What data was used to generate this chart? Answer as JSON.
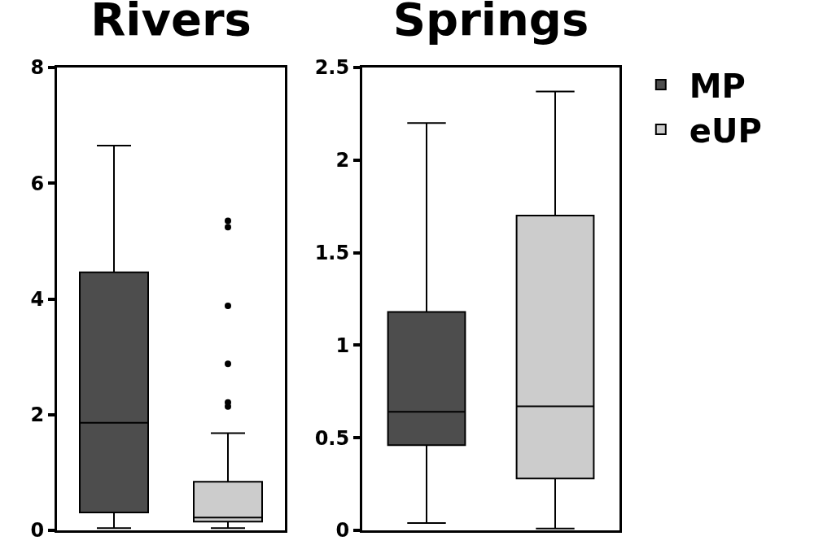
{
  "chart_data": [
    {
      "type": "box",
      "title": "Rivers",
      "categories": [
        null
      ],
      "ylim": [
        0,
        8
      ],
      "yticks": [
        0,
        2,
        4,
        6,
        8
      ],
      "grid": false,
      "legend": false,
      "series": [
        {
          "color": "#4d4d4d",
          "boxes": [
            {
              "low": 0.04,
              "q1": 0.31,
              "median": 1.86,
              "q3": 4.46,
              "high": 6.65
            }
          ]
        },
        {
          "color": "#cccccc",
          "boxes": [
            {
              "low": 0.04,
              "q1": 0.15,
              "median": 0.22,
              "q3": 0.84,
              "high": 1.68,
              "outliers": [
                2.14,
                2.21,
                2.88,
                3.88,
                5.24,
                5.35
              ]
            }
          ]
        }
      ]
    },
    {
      "type": "box",
      "title": "Springs",
      "categories": [
        null
      ],
      "ylim": [
        0,
        2.5
      ],
      "yticks": [
        0,
        0.5,
        1,
        1.5,
        2,
        2.5
      ],
      "grid": false,
      "legend": "right",
      "series": [
        {
          "name": "MP",
          "color": "#4d4d4d",
          "boxes": [
            {
              "low": 0.04,
              "q1": 0.46,
              "median": 0.64,
              "q3": 1.18,
              "high": 2.2
            }
          ]
        },
        {
          "name": "eUP",
          "color": "#cccccc",
          "boxes": [
            {
              "low": 0.01,
              "q1": 0.28,
              "median": 0.67,
              "q3": 1.7,
              "high": 2.37
            }
          ]
        }
      ]
    }
  ]
}
